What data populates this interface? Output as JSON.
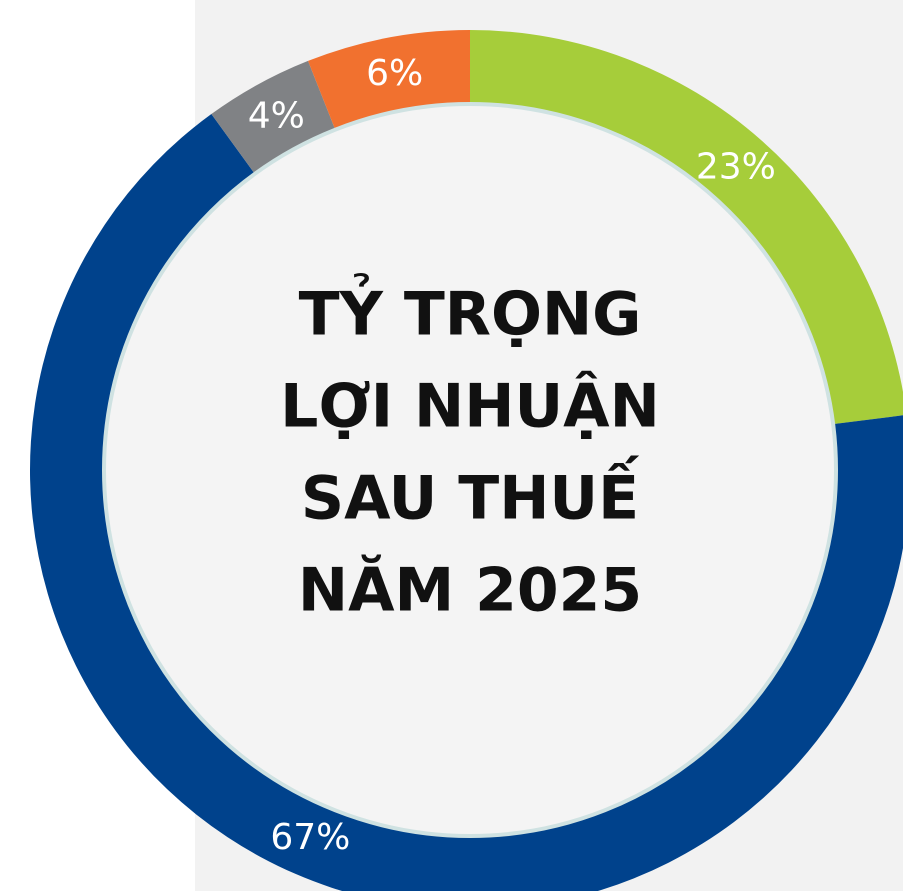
{
  "chart_data": {
    "type": "donut",
    "title": [
      "TỶ TRỌNG",
      "LỢI NHUẬN",
      "SAU THUẾ",
      "NĂM 2025"
    ],
    "categories": [
      null,
      null,
      null,
      null
    ],
    "values": [
      23,
      67,
      4,
      6
    ],
    "value_labels": [
      "23%",
      "67%",
      "4%",
      "6%"
    ],
    "colors": [
      "#a6cd3a",
      "#00428c",
      "#808285",
      "#f1712f"
    ]
  }
}
